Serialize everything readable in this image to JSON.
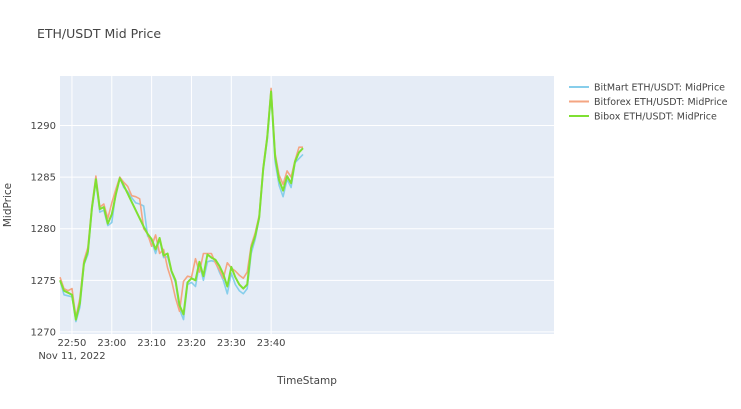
{
  "chart_data": {
    "type": "line",
    "title": "ETH/USDT Mid Price",
    "xlabel": "TimeStamp",
    "ylabel": "MidPrice",
    "xlim": [
      -13,
      111
    ],
    "ylim": [
      1269.8,
      1294.8
    ],
    "x_ticks": [
      {
        "value": -10,
        "label": "22:50",
        "sublabel": "Nov 11, 2022"
      },
      {
        "value": 0,
        "label": "23:00"
      },
      {
        "value": 10,
        "label": "23:10"
      },
      {
        "value": 20,
        "label": "23:20"
      },
      {
        "value": 30,
        "label": "23:30"
      },
      {
        "value": 40,
        "label": "23:40"
      }
    ],
    "y_ticks": [
      1270,
      1275,
      1280,
      1285,
      1290
    ],
    "grid": true,
    "legend_position": "top-right",
    "x": [
      -13,
      -12,
      -11,
      -10,
      -9,
      -8,
      -7,
      -6,
      -5,
      -4,
      -3,
      -2,
      -1,
      0,
      1,
      2,
      3,
      4,
      5,
      6,
      7,
      8,
      9,
      10,
      11,
      12,
      13,
      14,
      15,
      16,
      17,
      18,
      19,
      20,
      21,
      22,
      23,
      24,
      25,
      26,
      27,
      28,
      29,
      30,
      31,
      32,
      33,
      34,
      35,
      36,
      37,
      38,
      39,
      40,
      41,
      42,
      43,
      44,
      45,
      46,
      47,
      48
    ],
    "series": [
      {
        "name": "BitMart ETH/USDT: MidPrice",
        "color": "#87ceeb",
        "values": [
          1275.0,
          1273.6,
          1273.5,
          1273.4,
          1271.0,
          1272.4,
          1276.5,
          1277.5,
          1281.8,
          1284.6,
          1281.6,
          1281.8,
          1280.3,
          1280.6,
          1283.4,
          1285.0,
          1284.0,
          1283.6,
          1283.0,
          1282.5,
          1282.4,
          1282.2,
          1279.3,
          1278.8,
          1277.6,
          1279.0,
          1277.2,
          1277.3,
          1275.8,
          1274.8,
          1272.2,
          1271.2,
          1274.6,
          1274.8,
          1274.4,
          1276.6,
          1275.0,
          1276.8,
          1276.9,
          1276.8,
          1275.8,
          1275.0,
          1273.7,
          1275.7,
          1274.6,
          1274.0,
          1273.7,
          1274.2,
          1277.6,
          1279.0,
          1281.0,
          1285.6,
          1288.6,
          1292.9,
          1286.5,
          1284.2,
          1283.1,
          1284.8,
          1284.0,
          1286.4,
          1286.8,
          1287.2
        ]
      },
      {
        "name": "Bitforex ETH/USDT: MidPrice",
        "color": "#f4a582",
        "values": [
          1275.3,
          1274.2,
          1274.0,
          1274.2,
          1271.4,
          1273.3,
          1276.9,
          1278.2,
          1282.2,
          1285.1,
          1282.1,
          1282.4,
          1281.0,
          1282.5,
          1283.8,
          1285.0,
          1284.5,
          1284.1,
          1283.2,
          1283.1,
          1282.9,
          1280.0,
          1279.5,
          1278.3,
          1279.4,
          1277.6,
          1278.0,
          1276.2,
          1275.0,
          1273.3,
          1272.0,
          1274.9,
          1275.4,
          1275.3,
          1277.1,
          1275.8,
          1277.6,
          1277.6,
          1277.6,
          1276.7,
          1276.0,
          1275.2,
          1276.7,
          1276.2,
          1275.9,
          1275.5,
          1275.2,
          1275.8,
          1278.4,
          1279.6,
          1281.3,
          1286.0,
          1289.0,
          1293.6,
          1287.3,
          1285.2,
          1284.3,
          1285.6,
          1285.0,
          1286.6,
          1287.9,
          1287.9
        ]
      },
      {
        "name": "Bibox ETH/USDT: MidPrice",
        "color": "#7fe032",
        "values": [
          1275.0,
          1274.0,
          1273.8,
          1273.6,
          1271.2,
          1272.8,
          1276.6,
          1277.8,
          1282.0,
          1284.8,
          1281.9,
          1282.1,
          1280.5,
          1281.4,
          1283.3,
          1284.9,
          1284.2,
          1283.4,
          1282.6,
          1281.8,
          1281.0,
          1280.2,
          1279.5,
          1279.0,
          1278.0,
          1279.1,
          1277.4,
          1277.6,
          1275.9,
          1275.0,
          1272.6,
          1271.7,
          1274.8,
          1275.2,
          1275.0,
          1276.8,
          1275.4,
          1277.5,
          1277.2,
          1277.0,
          1276.4,
          1275.6,
          1274.4,
          1276.3,
          1275.3,
          1274.6,
          1274.2,
          1274.6,
          1278.1,
          1279.3,
          1281.1,
          1285.8,
          1288.8,
          1293.3,
          1287.0,
          1284.7,
          1283.7,
          1285.1,
          1284.4,
          1286.5,
          1287.4,
          1287.8
        ]
      }
    ]
  }
}
